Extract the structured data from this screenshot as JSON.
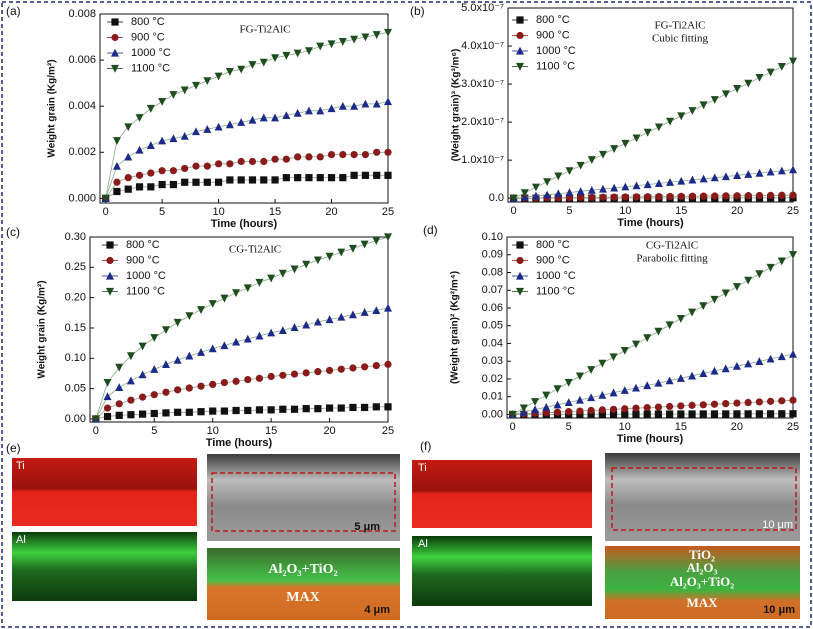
{
  "chart_data": [
    {
      "type": "line",
      "label": "(a)",
      "title": "FG-Ti2AlC",
      "x_label": "Time (hours)",
      "y_label": "Weight grain (Kg/m²)",
      "x": [
        0,
        1,
        2,
        3,
        4,
        5,
        6,
        7,
        8,
        9,
        10,
        11,
        12,
        13,
        14,
        15,
        16,
        17,
        18,
        19,
        20,
        21,
        22,
        23,
        24,
        25
      ],
      "xlim": [
        -0.5,
        25
      ],
      "xticks": [
        0,
        5,
        10,
        15,
        20,
        25
      ],
      "ylim": [
        -0.0002,
        0.008
      ],
      "yticks": [
        {
          "value": 0,
          "label": "0.000"
        },
        0.002,
        0.004,
        0.006,
        0.008
      ],
      "legend": "upper left",
      "series": [
        {
          "name": "800 °C",
          "color": "#111111",
          "marker": "square",
          "values": [
            0,
            0.0003,
            0.0004,
            0.0005,
            0.0005,
            0.0006,
            0.0006,
            0.0007,
            0.0007,
            0.0007,
            0.0007,
            0.0008,
            0.0008,
            0.0008,
            0.0008,
            0.0008,
            0.0009,
            0.0009,
            0.0009,
            0.0009,
            0.0009,
            0.0009,
            0.001,
            0.001,
            0.001,
            0.001
          ]
        },
        {
          "name": "900 °C",
          "color": "#8b1a1a",
          "marker": "circle",
          "values": [
            0,
            0.0007,
            0.0009,
            0.001,
            0.0011,
            0.0012,
            0.0012,
            0.0013,
            0.0014,
            0.0014,
            0.0015,
            0.0015,
            0.0016,
            0.0016,
            0.0016,
            0.0017,
            0.0017,
            0.0018,
            0.0018,
            0.0018,
            0.0019,
            0.0019,
            0.0019,
            0.0019,
            0.002,
            0.002
          ]
        },
        {
          "name": "1000 °C",
          "color": "#1c2a8a",
          "marker": "triangle-up",
          "values": [
            0,
            0.0014,
            0.0018,
            0.0021,
            0.0023,
            0.0025,
            0.0026,
            0.0027,
            0.0029,
            0.003,
            0.0031,
            0.0032,
            0.0033,
            0.0034,
            0.0035,
            0.0035,
            0.0036,
            0.0037,
            0.0038,
            0.0038,
            0.0039,
            0.004,
            0.004,
            0.0041,
            0.0041,
            0.0042
          ]
        },
        {
          "name": "1100 °C",
          "color": "#1f4d1f",
          "marker": "triangle-down",
          "values": [
            0,
            0.0025,
            0.0031,
            0.0035,
            0.0039,
            0.0042,
            0.0045,
            0.0047,
            0.0049,
            0.0051,
            0.0053,
            0.0055,
            0.0056,
            0.0058,
            0.0059,
            0.0061,
            0.0062,
            0.0063,
            0.0064,
            0.0066,
            0.0067,
            0.0068,
            0.0069,
            0.007,
            0.0071,
            0.0072
          ]
        }
      ]
    },
    {
      "type": "line",
      "label": "(b)",
      "title": "FG-Ti2AlC",
      "subtitle": "Cubic fitting",
      "x_label": "Time (hours)",
      "y_label": "(Weight grain)³ (Kg³/m⁶)",
      "x": [
        0,
        1,
        2,
        3,
        4,
        5,
        6,
        7,
        8,
        9,
        10,
        11,
        12,
        13,
        14,
        15,
        16,
        17,
        18,
        19,
        20,
        21,
        22,
        23,
        24,
        25
      ],
      "xlim": [
        -0.5,
        25
      ],
      "xticks": [
        0,
        5,
        10,
        15,
        20,
        25
      ],
      "ylim": [
        -1e-08,
        5e-07
      ],
      "yticks": [
        {
          "value": 0,
          "label": "0.0"
        },
        {
          "value": 1e-07,
          "label": "1.0x10⁻⁷"
        },
        {
          "value": 2e-07,
          "label": "2.0x10⁻⁷"
        },
        {
          "value": 3e-07,
          "label": "3.0x10⁻⁷"
        },
        {
          "value": 4e-07,
          "label": "4.0x10⁻⁷"
        },
        {
          "value": 5e-07,
          "label": "5.0x10⁻⁷"
        }
      ],
      "legend": "upper left",
      "series": [
        {
          "name": "800 °C",
          "color": "#111111",
          "marker": "square",
          "values": [
            0,
            4e-11,
            8e-11,
            1.2e-10,
            1.6e-10,
            2e-10,
            2.4e-10,
            2.8e-10,
            3.2e-10,
            3.6e-10,
            4e-10,
            4.4e-10,
            4.8e-10,
            5.2e-10,
            5.6e-10,
            6e-10,
            6.4e-10,
            6.8e-10,
            7.2e-10,
            7.6e-10,
            8e-10,
            8.4e-10,
            8.8e-10,
            9.2e-10,
            9.6e-10,
            1e-09
          ]
        },
        {
          "name": "900 °C",
          "color": "#8b1a1a",
          "marker": "circle",
          "values": [
            0,
            3e-10,
            6e-10,
            1e-09,
            1.3e-09,
            1.6e-09,
            1.9e-09,
            2.2e-09,
            2.6e-09,
            2.9e-09,
            3.2e-09,
            3.5e-09,
            3.8e-09,
            4.2e-09,
            4.5e-09,
            4.8e-09,
            5.1e-09,
            5.4e-09,
            5.8e-09,
            6.1e-09,
            6.4e-09,
            6.7e-09,
            7e-09,
            7.4e-09,
            7.7e-09,
            8e-09
          ]
        },
        {
          "name": "1000 °C",
          "color": "#1c2a8a",
          "marker": "triangle-up",
          "values": [
            0,
            3e-09,
            6e-09,
            9e-09,
            1.2e-08,
            1.5e-08,
            1.8e-08,
            2.1e-08,
            2.4e-08,
            2.7e-08,
            3e-08,
            3.3e-08,
            3.6e-08,
            3.9e-08,
            4.2e-08,
            4.5e-08,
            4.8e-08,
            5.1e-08,
            5.4e-08,
            5.7e-08,
            6e-08,
            6.3e-08,
            6.6e-08,
            6.9e-08,
            7.2e-08,
            7.5e-08
          ]
        },
        {
          "name": "1100 °C",
          "color": "#1f4d1f",
          "marker": "triangle-down",
          "values": [
            0,
            1.4e-08,
            2.9e-08,
            4.3e-08,
            5.8e-08,
            7.2e-08,
            8.6e-08,
            1.01e-07,
            1.15e-07,
            1.3e-07,
            1.44e-07,
            1.58e-07,
            1.73e-07,
            1.87e-07,
            2.02e-07,
            2.16e-07,
            2.3e-07,
            2.45e-07,
            2.59e-07,
            2.74e-07,
            2.88e-07,
            3.02e-07,
            3.17e-07,
            3.31e-07,
            3.46e-07,
            3.6e-07
          ]
        }
      ]
    },
    {
      "type": "line",
      "label": "(c)",
      "title": "CG-Ti2AlC",
      "x_label": "Time (hours)",
      "y_label": "Weight grain (Kg/m²)",
      "x": [
        0,
        1,
        2,
        3,
        4,
        5,
        6,
        7,
        8,
        9,
        10,
        11,
        12,
        13,
        14,
        15,
        16,
        17,
        18,
        19,
        20,
        21,
        22,
        23,
        24,
        25
      ],
      "xlim": [
        -0.5,
        25
      ],
      "xticks": [
        0,
        5,
        10,
        15,
        20,
        25
      ],
      "ylim": [
        -0.005,
        0.3
      ],
      "yticks": [
        {
          "value": 0,
          "label": "0.00"
        },
        0.05,
        {
          "value": 0.1,
          "label": "0.10"
        },
        0.15,
        {
          "value": 0.2,
          "label": "0.20"
        },
        0.25,
        {
          "value": 0.3,
          "label": "0.30"
        }
      ],
      "legend": "upper left",
      "series": [
        {
          "name": "800 °C",
          "color": "#111111",
          "marker": "square",
          "values": [
            0,
            0.004,
            0.006,
            0.007,
            0.008,
            0.009,
            0.01,
            0.011,
            0.011,
            0.012,
            0.013,
            0.013,
            0.014,
            0.014,
            0.015,
            0.015,
            0.016,
            0.016,
            0.017,
            0.017,
            0.018,
            0.018,
            0.019,
            0.019,
            0.02,
            0.02
          ]
        },
        {
          "name": "900 °C",
          "color": "#8b1a1a",
          "marker": "circle",
          "values": [
            0,
            0.018,
            0.025,
            0.031,
            0.036,
            0.04,
            0.044,
            0.048,
            0.051,
            0.054,
            0.057,
            0.06,
            0.062,
            0.065,
            0.067,
            0.07,
            0.072,
            0.074,
            0.076,
            0.078,
            0.08,
            0.082,
            0.084,
            0.086,
            0.088,
            0.09
          ]
        },
        {
          "name": "1000 °C",
          "color": "#1c2a8a",
          "marker": "triangle-up",
          "values": [
            0,
            0.037,
            0.052,
            0.063,
            0.073,
            0.082,
            0.09,
            0.097,
            0.104,
            0.11,
            0.116,
            0.121,
            0.127,
            0.132,
            0.137,
            0.142,
            0.146,
            0.151,
            0.155,
            0.16,
            0.164,
            0.168,
            0.172,
            0.176,
            0.179,
            0.183
          ]
        },
        {
          "name": "1100 °C",
          "color": "#1f4d1f",
          "marker": "triangle-down",
          "values": [
            0,
            0.06,
            0.085,
            0.104,
            0.12,
            0.134,
            0.147,
            0.159,
            0.17,
            0.18,
            0.19,
            0.199,
            0.208,
            0.216,
            0.225,
            0.232,
            0.24,
            0.247,
            0.255,
            0.262,
            0.268,
            0.275,
            0.281,
            0.288,
            0.294,
            0.3
          ]
        }
      ]
    },
    {
      "type": "line",
      "label": "(d)",
      "title": "CG-Ti2AlC",
      "subtitle": "Parabolic fitting",
      "x_label": "Time (hours)",
      "y_label": "(Weight grain)² (Kg²/m⁴)",
      "x": [
        0,
        1,
        2,
        3,
        4,
        5,
        6,
        7,
        8,
        9,
        10,
        11,
        12,
        13,
        14,
        15,
        16,
        17,
        18,
        19,
        20,
        21,
        22,
        23,
        24,
        25
      ],
      "xlim": [
        -0.5,
        25
      ],
      "xticks": [
        0,
        5,
        10,
        15,
        20,
        25
      ],
      "ylim": [
        -0.002,
        0.1
      ],
      "yticks": [
        {
          "value": 0,
          "label": "0.00"
        },
        0.01,
        0.02,
        0.03,
        0.04,
        0.05,
        0.06,
        0.07,
        0.08,
        0.09,
        {
          "value": 0.1,
          "label": "0.10"
        }
      ],
      "legend": "upper left",
      "series": [
        {
          "name": "800 °C",
          "color": "#111111",
          "marker": "square",
          "values": [
            0,
            1.6e-05,
            3.2e-05,
            4.8e-05,
            6.4e-05,
            8e-05,
            9.6e-05,
            0.000112,
            0.000128,
            0.000144,
            0.00016,
            0.000176,
            0.000192,
            0.000208,
            0.000224,
            0.00024,
            0.000256,
            0.000272,
            0.000288,
            0.000304,
            0.00032,
            0.000336,
            0.000352,
            0.000368,
            0.000384,
            0.0004
          ]
        },
        {
          "name": "900 °C",
          "color": "#8b1a1a",
          "marker": "circle",
          "values": [
            0,
            0.00032,
            0.00064,
            0.00096,
            0.00128,
            0.0016,
            0.00192,
            0.00224,
            0.00256,
            0.00288,
            0.0032,
            0.00352,
            0.00384,
            0.00416,
            0.00448,
            0.0048,
            0.00512,
            0.00544,
            0.00576,
            0.00608,
            0.0064,
            0.00672,
            0.00704,
            0.00736,
            0.00768,
            0.008
          ]
        },
        {
          "name": "1000 °C",
          "color": "#1c2a8a",
          "marker": "triangle-up",
          "values": [
            0,
            0.00136,
            0.00272,
            0.00408,
            0.00544,
            0.0068,
            0.00816,
            0.00952,
            0.01088,
            0.01224,
            0.0136,
            0.01496,
            0.01632,
            0.01768,
            0.01904,
            0.0204,
            0.02176,
            0.02312,
            0.02448,
            0.02584,
            0.0272,
            0.02856,
            0.02992,
            0.03128,
            0.03264,
            0.034
          ]
        },
        {
          "name": "1100 °C",
          "color": "#1f4d1f",
          "marker": "triangle-down",
          "values": [
            0,
            0.0036,
            0.0072,
            0.0108,
            0.0144,
            0.018,
            0.0216,
            0.0252,
            0.0288,
            0.0324,
            0.036,
            0.0396,
            0.0432,
            0.0468,
            0.0504,
            0.054,
            0.0576,
            0.0612,
            0.0648,
            0.0684,
            0.072,
            0.0756,
            0.0792,
            0.0828,
            0.0864,
            0.09
          ]
        }
      ]
    }
  ],
  "micrographs": {
    "e": {
      "label": "(e)",
      "map_ti": "Ti",
      "map_al": "Al",
      "sem_scale": "5 μm",
      "overlay_layer": "Al₂O₃+TiO₂",
      "overlay_base": "MAX",
      "overlay_scale": "4 μm"
    },
    "f": {
      "label": "(f)",
      "map_ti": "Ti",
      "map_al": "Al",
      "sem_scale": "10 μm",
      "overlay_top": "TiO₂",
      "overlay_mid": "Al₂O₃",
      "overlay_layer": "Al₂O₃+TiO₂",
      "overlay_base": "MAX",
      "overlay_scale": "10 μm"
    }
  }
}
